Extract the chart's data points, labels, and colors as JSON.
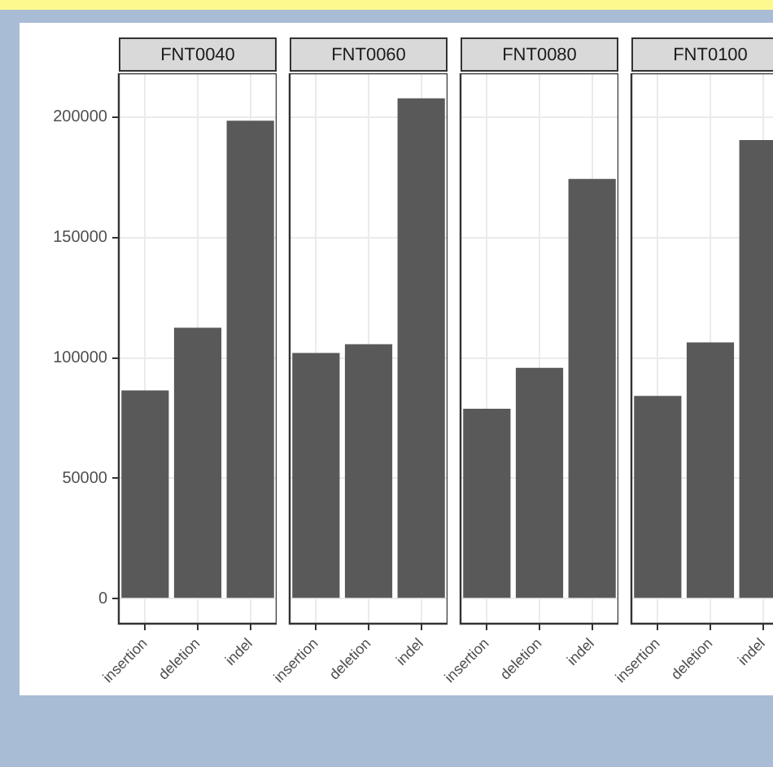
{
  "chart_data": [
    {
      "type": "bar",
      "title": "FNT0040",
      "categories": [
        "insertion",
        "deletion",
        "indel"
      ],
      "values": [
        86500,
        112500,
        198500
      ],
      "color": "#595959",
      "ylim": [
        -10390,
        218190
      ],
      "yticks": [
        0,
        50000,
        100000,
        150000,
        200000
      ],
      "grid": true
    },
    {
      "type": "bar",
      "title": "FNT0060",
      "categories": [
        "insertion",
        "deletion",
        "indel"
      ],
      "values": [
        102000,
        105700,
        207800
      ],
      "color": "#595959",
      "ylim": [
        -10390,
        218190
      ],
      "yticks": [
        0,
        50000,
        100000,
        150000,
        200000
      ],
      "grid": true,
      "tick_labels": "x"
    },
    {
      "type": "bar",
      "title": "FNT0080",
      "categories": [
        "insertion",
        "deletion",
        "indel"
      ],
      "values": [
        78900,
        95900,
        174300
      ],
      "color": "#595959",
      "ylim": [
        -10390,
        218190
      ],
      "yticks": [
        0,
        50000,
        100000,
        150000,
        200000
      ],
      "grid": true,
      "tick_labels": "x"
    },
    {
      "type": "bar",
      "title": "FNT0100",
      "categories": [
        "insertion",
        "deletion",
        "indel"
      ],
      "values": [
        84200,
        106400,
        190500
      ],
      "color": "#595959",
      "ylim": [
        -10390,
        218190
      ],
      "yticks": [
        0,
        50000,
        100000,
        150000,
        200000
      ],
      "grid": true,
      "tick_labels": "x"
    }
  ]
}
